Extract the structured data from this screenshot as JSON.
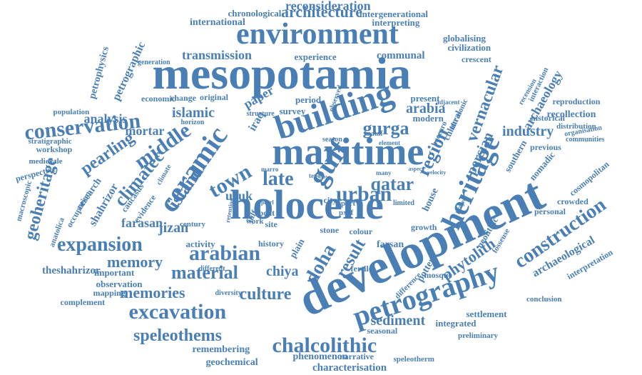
{
  "palette": {
    "word_color": "#4a7fb5",
    "background": "#ffffff"
  },
  "words": [
    "mesopotamia",
    "holocene",
    "development",
    "maritime",
    "environment",
    "building",
    "ceramic",
    "heritage",
    "petrography",
    "conservation",
    "excavation",
    "chalcolithic",
    "construction",
    "arabian",
    "expansion",
    "material",
    "urban",
    "gulf",
    "doha",
    "qatar",
    "town",
    "late",
    "region",
    "phytolith",
    "culture",
    "speleothems",
    "memories",
    "memory",
    "vernacular",
    "middle",
    "island",
    "climatec",
    "geoheritage",
    "pearling",
    "gurga",
    "islamic",
    "persian",
    "industry",
    "sediment",
    "architecture",
    "reconsideration",
    "transmission",
    "result",
    "mortar",
    "analysis",
    "arabia",
    "archaeology",
    "archaeological",
    "chiya",
    "jizan",
    "farasan",
    "uruk",
    "iraq",
    "shahrizor",
    "paper",
    "petrographic",
    "petrophysics",
    "international",
    "chronological",
    "intergenerational",
    "interpreting",
    "globalising",
    "civilization",
    "communal",
    "experience",
    "crescent",
    "economic",
    "change",
    "original",
    "survey",
    "period",
    "present",
    "modern",
    "recollection",
    "reproduction",
    "historical",
    "distribution",
    "organisation",
    "communities",
    "previous",
    "nomadic",
    "southern",
    "cosmopolitan",
    "crowded",
    "personal",
    "interpretation",
    "conclusion",
    "settlement",
    "integrated",
    "preliminary",
    "seasonal",
    "speleotherm",
    "narrative",
    "phenomenon",
    "characterisation",
    "geochemical",
    "remembering",
    "complement",
    "mapping",
    "diversity",
    "important",
    "observation",
    "theshahrizor",
    "different",
    "activity",
    "century",
    "research",
    "occupation",
    "anatolica",
    "macroscopic",
    "perspective",
    "medievale",
    "workshop",
    "stratigraphic",
    "population",
    "generation",
    "horizon",
    "caucasus",
    "evidence",
    "climate",
    "fertile",
    "history",
    "plain",
    "colour",
    "pottery",
    "neolithic",
    "mosque",
    "fosseuse",
    "difference",
    "growth",
    "stone",
    "house",
    "cultural",
    "ultrasonic",
    "boccaro",
    "mataf",
    "element",
    "season",
    "structure",
    "tepe",
    "marro",
    "boat",
    "site",
    "work",
    "port",
    "city",
    "pxrf",
    "farsan",
    "recension",
    "interaction",
    "adjacent",
    "limited",
    "julfar",
    "observed",
    "many",
    "velocity",
    "project",
    "flow",
    "pearl",
    "aspect",
    "retention",
    "material2"
  ]
}
